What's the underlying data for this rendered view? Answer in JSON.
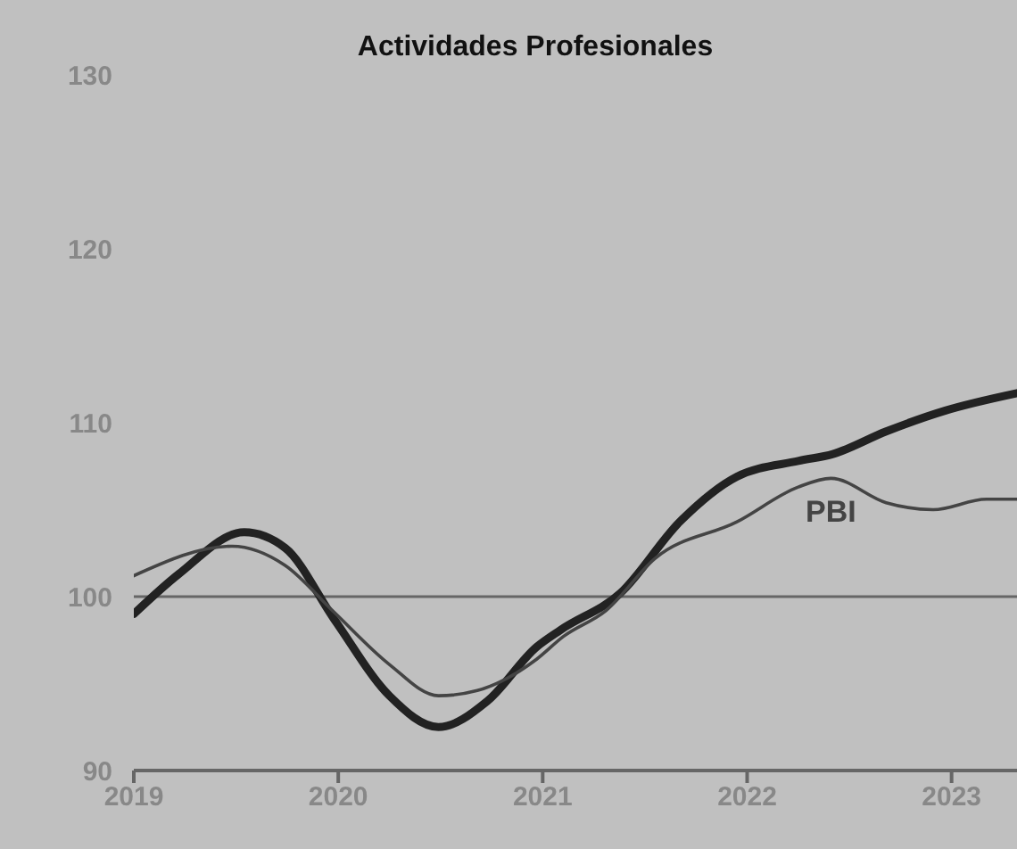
{
  "chart_data": {
    "type": "line",
    "title": "Actividades Profesionales",
    "xlim": [
      2019,
      2023.32
    ],
    "xticks": [
      2019,
      2020,
      2021,
      2022,
      2023
    ],
    "ylim": [
      90,
      130
    ],
    "yticks": [
      90,
      100,
      110,
      120,
      130
    ],
    "grid": false,
    "legend": false,
    "marker": "none",
    "line_style": "solid",
    "ref_lines": [
      {
        "axis": "y",
        "value": 100,
        "color": "#666666"
      }
    ],
    "series": [
      {
        "color": "#222222",
        "x": [
          2019,
          2019.22,
          2019.54,
          2019.74,
          2019.98,
          2020.25,
          2020.49,
          2020.73,
          2020.97,
          2021.09,
          2021.38,
          2021.67,
          2021.95,
          2022.25,
          2022.42,
          2022.68,
          2022.97,
          2023.32
        ],
        "values": [
          99.0,
          101.3,
          103.7,
          102.8,
          98.7,
          94.3,
          92.5,
          94.0,
          97.1,
          98.1,
          100.2,
          104.3,
          106.9,
          107.8,
          108.2,
          109.5,
          110.7,
          111.7
        ]
      },
      {
        "name": "PBI",
        "color": "#444444",
        "x": [
          2019,
          2019.48,
          2019.74,
          2019.98,
          2020.25,
          2020.49,
          2020.68,
          2020.97,
          2021.1,
          2021.31,
          2021.55,
          2021.95,
          2022.25,
          2022.41,
          2022.68,
          2022.91,
          2023.17,
          2023.32
        ],
        "values": [
          101.2,
          102.9,
          101.8,
          99.1,
          96.1,
          94.3,
          94.6,
          96.4,
          97.7,
          99.2,
          102.2,
          104.3,
          106.3,
          106.8,
          105.4,
          105.0,
          105.6,
          105.6
        ]
      }
    ]
  }
}
